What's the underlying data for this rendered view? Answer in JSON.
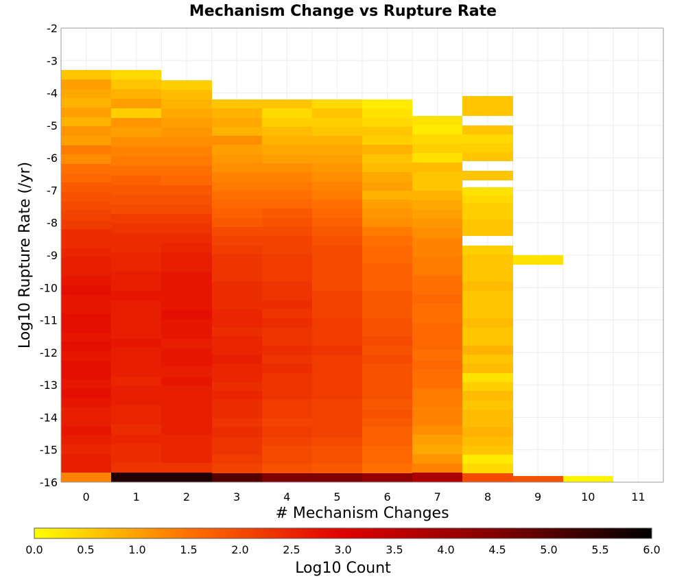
{
  "chart_data": {
    "type": "heatmap",
    "title": "Mechanism Change vs Rupture Rate",
    "xlabel": "# Mechanism Changes",
    "ylabel": "Log10 Rupture Rate (/yr)",
    "colorbar_label": "Log10 Count",
    "x_ticks": [
      "0",
      "1",
      "2",
      "3",
      "4",
      "5",
      "6",
      "7",
      "8",
      "9",
      "10",
      "11"
    ],
    "y_ticks": [
      "-2",
      "-3",
      "-4",
      "-5",
      "-6",
      "-7",
      "-8",
      "-9",
      "-10",
      "-11",
      "-12",
      "-13",
      "-14",
      "-15",
      "-16"
    ],
    "colorbar_ticks": [
      "0.0",
      "0.5",
      "1.0",
      "1.5",
      "2.0",
      "2.5",
      "3.0",
      "3.5",
      "4.0",
      "4.5",
      "5.0",
      "5.5",
      "6.0"
    ],
    "xlim": [
      -0.5,
      11.5
    ],
    "ylim": [
      -16,
      -2
    ],
    "color_range": [
      0,
      6
    ],
    "colormap": [
      "#ffff00",
      "#ff7000",
      "#e00000",
      "#800000",
      "#000000"
    ],
    "grid": true,
    "bin_height": 0.2857,
    "columns": [
      {
        "x": 0,
        "bins": [
          {
            "from": -16.0,
            "to": -3.3,
            "values": [
              1.3,
              2.6,
              2.6,
              2.5,
              2.6,
              2.7,
              2.6,
              2.6,
              2.7,
              2.8,
              2.7,
              2.8,
              2.8,
              2.7,
              2.8,
              2.7,
              2.8,
              2.8,
              2.7,
              2.7,
              2.8,
              2.7,
              2.6,
              2.6,
              2.5,
              2.4,
              2.4,
              2.2,
              2.1,
              2.0,
              1.9,
              1.8,
              1.6,
              1.5,
              1.2,
              1.4,
              1.0,
              1.1,
              0.8,
              1.0,
              0.8,
              0.9,
              1.0,
              0.6
            ]
          }
        ]
      },
      {
        "x": 1,
        "bins": [
          {
            "from": -16.0,
            "to": -3.3,
            "values": [
              5.6,
              2.3,
              2.4,
              2.4,
              2.5,
              2.4,
              2.5,
              2.5,
              2.6,
              2.6,
              2.5,
              2.6,
              2.6,
              2.6,
              2.7,
              2.6,
              2.6,
              2.6,
              2.6,
              2.7,
              2.6,
              2.6,
              2.5,
              2.5,
              2.4,
              2.4,
              2.3,
              2.2,
              2.0,
              1.9,
              1.8,
              1.7,
              1.5,
              1.4,
              1.3,
              1.2,
              1.0,
              1.1,
              0.5,
              1.0,
              0.8,
              0.6,
              0.4
            ]
          }
        ]
      },
      {
        "x": 2,
        "bins": [
          {
            "from": -16.0,
            "to": -3.6,
            "values": [
              5.6,
              2.3,
              2.5,
              2.5,
              2.5,
              2.6,
              2.6,
              2.6,
              2.6,
              2.6,
              2.7,
              2.6,
              2.7,
              2.7,
              2.6,
              2.7,
              2.7,
              2.8,
              2.7,
              2.7,
              2.7,
              2.7,
              2.6,
              2.6,
              2.5,
              2.4,
              2.3,
              2.2,
              2.0,
              1.9,
              1.8,
              1.6,
              1.5,
              1.4,
              1.3,
              1.2,
              1.1,
              1.0,
              0.9,
              0.8,
              0.7,
              0.5
            ]
          }
        ]
      },
      {
        "x": 3,
        "bins": [
          {
            "from": -16.0,
            "to": -4.2,
            "values": [
              5.0,
              2.1,
              2.2,
              2.3,
              2.3,
              2.4,
              2.3,
              2.4,
              2.4,
              2.5,
              2.4,
              2.5,
              2.5,
              2.6,
              2.5,
              2.5,
              2.4,
              2.5,
              2.5,
              2.4,
              2.4,
              2.4,
              2.3,
              2.3,
              2.3,
              2.2,
              2.1,
              2.0,
              1.8,
              1.7,
              1.6,
              1.5,
              1.4,
              1.3,
              1.2,
              1.1,
              1.0,
              1.2,
              0.8,
              0.9,
              0.8,
              0.6
            ]
          }
        ]
      },
      {
        "x": 4,
        "bins": [
          {
            "from": -16.0,
            "to": -4.2,
            "values": [
              4.5,
              1.9,
              2.0,
              2.0,
              2.1,
              2.2,
              2.1,
              2.2,
              2.2,
              2.3,
              2.3,
              2.3,
              2.4,
              2.3,
              2.4,
              2.3,
              2.3,
              2.4,
              2.3,
              2.4,
              2.3,
              2.3,
              2.2,
              2.2,
              2.2,
              2.1,
              2.1,
              2.0,
              1.9,
              1.8,
              1.6,
              1.5,
              1.4,
              1.3,
              1.2,
              1.0,
              0.9,
              0.8,
              0.7,
              0.5,
              0.4,
              0.6
            ]
          }
        ]
      },
      {
        "x": 5,
        "bins": [
          {
            "from": -16.0,
            "to": -4.2,
            "values": [
              4.5,
              1.8,
              1.9,
              1.9,
              2.0,
              2.1,
              2.1,
              2.1,
              2.1,
              2.2,
              2.2,
              2.2,
              2.2,
              2.2,
              2.3,
              2.2,
              2.2,
              2.2,
              2.1,
              2.1,
              2.1,
              2.0,
              2.0,
              2.0,
              2.0,
              2.0,
              1.9,
              1.8,
              1.7,
              1.6,
              1.5,
              1.4,
              1.3,
              1.2,
              1.1,
              1.0,
              0.9,
              0.8,
              0.6,
              0.5,
              0.6,
              0.4
            ]
          }
        ]
      },
      {
        "x": 6,
        "bins": [
          {
            "from": -16.0,
            "to": -4.2,
            "values": [
              4.2,
              1.5,
              1.6,
              1.6,
              1.7,
              1.7,
              1.8,
              1.9,
              1.8,
              1.9,
              1.9,
              1.9,
              1.9,
              2.0,
              1.9,
              2.0,
              1.9,
              1.9,
              1.8,
              1.8,
              1.8,
              1.7,
              1.7,
              1.7,
              1.6,
              1.6,
              1.5,
              1.4,
              1.2,
              1.1,
              1.0,
              0.8,
              1.0,
              0.9,
              0.7,
              0.6,
              0.8,
              0.5,
              0.6,
              0.4,
              0.3,
              0.2
            ]
          }
        ]
      },
      {
        "x": 7,
        "bins": [
          {
            "from": -16.0,
            "to": -4.7,
            "values": [
              3.8,
              1.3,
              1.1,
              0.9,
              1.0,
              1.2,
              1.3,
              1.3,
              1.4,
              1.4,
              1.5,
              1.5,
              1.6,
              1.5,
              1.6,
              1.6,
              1.6,
              1.5,
              1.5,
              1.6,
              1.5,
              1.5,
              1.4,
              1.4,
              1.3,
              1.3,
              1.2,
              1.1,
              1.0,
              0.9,
              0.8,
              0.6,
              0.6,
              0.7,
              0.3,
              0.5,
              0.4,
              0.2,
              0.3
            ]
          }
        ]
      },
      {
        "x": 8,
        "bins": [
          {
            "from": -16.0,
            "to": -8.7,
            "values": [
              2.0,
              0.4,
              0.2,
              0.6,
              0.7,
              0.8,
              0.7,
              0.7,
              0.6,
              0.7,
              0.5,
              0.3,
              0.7,
              0.6,
              0.8,
              0.6,
              0.6,
              0.7,
              0.6,
              0.6,
              0.6,
              0.7,
              0.6,
              0.6,
              0.6,
              0.5
            ]
          },
          {
            "from": -8.4,
            "to": -6.9,
            "values": [
              0.6,
              0.6,
              0.5,
              0.5,
              0.4,
              0.3
            ]
          },
          {
            "from": -6.7,
            "to": -6.4,
            "values": [
              0.6
            ]
          },
          {
            "from": -6.1,
            "to": -5.0,
            "values": [
              0.6,
              0.5,
              0.4,
              0.6
            ]
          },
          {
            "from": -4.7,
            "to": -4.1,
            "values": [
              0.6,
              0.6
            ]
          }
        ]
      },
      {
        "x": 9,
        "bins": [
          {
            "from": -16.0,
            "to": -15.8,
            "values": [
              1.9
            ]
          },
          {
            "from": -9.3,
            "to": -9.0,
            "values": [
              0.3
            ]
          }
        ]
      },
      {
        "x": 10,
        "bins": [
          {
            "from": -16.0,
            "to": -15.8,
            "values": [
              0.1
            ]
          }
        ]
      }
    ]
  }
}
